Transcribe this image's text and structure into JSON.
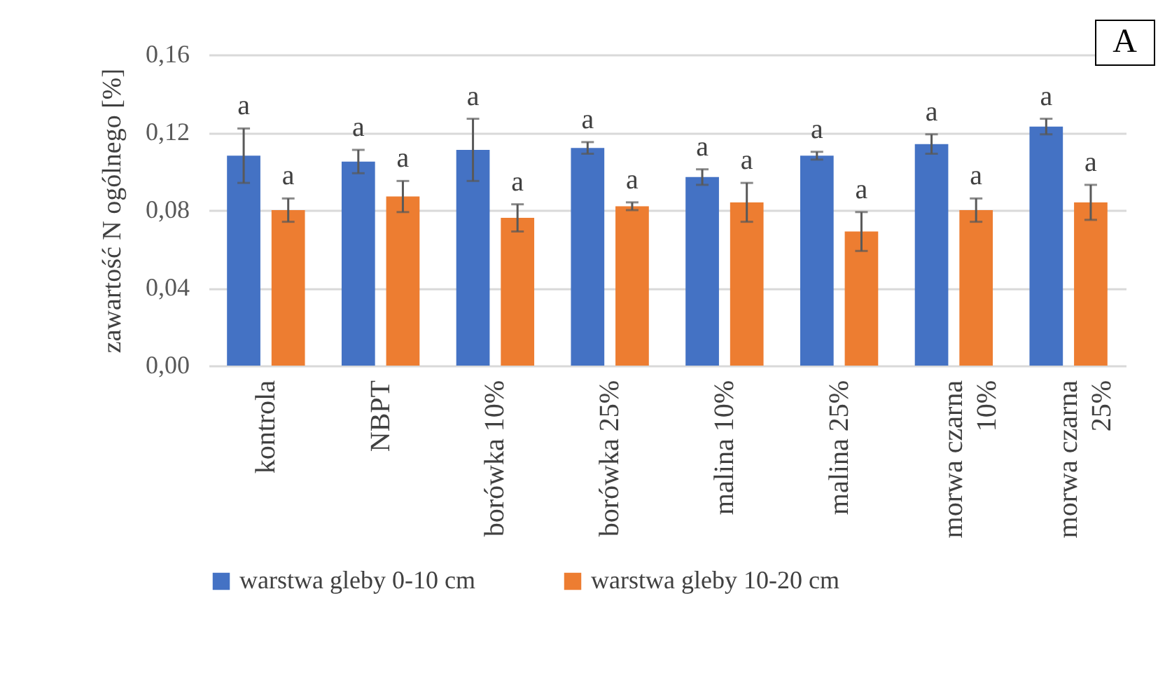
{
  "chart_data": {
    "type": "bar",
    "ylabel": "zawartość N ogólnego [%]",
    "categories": [
      "kontrola",
      "NBPT",
      "borówka 10%",
      "borówka 25%",
      "malina 10%",
      "malina 25%",
      "morwa czarna 10%",
      "morwa czarna 25%"
    ],
    "series": [
      {
        "name": "warstwa gleby 0-10 cm",
        "color": "#4472c4",
        "values": [
          0.108,
          0.105,
          0.111,
          0.112,
          0.097,
          0.108,
          0.114,
          0.123
        ],
        "errors": [
          0.014,
          0.006,
          0.016,
          0.003,
          0.004,
          0.002,
          0.005,
          0.004
        ]
      },
      {
        "name": "warstwa gleby 10-20 cm",
        "color": "#ed7d31",
        "values": [
          0.08,
          0.087,
          0.076,
          0.082,
          0.084,
          0.069,
          0.08,
          0.084
        ],
        "errors": [
          0.006,
          0.008,
          0.007,
          0.002,
          0.01,
          0.01,
          0.006,
          0.009
        ]
      }
    ],
    "ylim": [
      0,
      0.16
    ],
    "yticks": [
      {
        "value": 0,
        "label": "0,00"
      },
      {
        "value": 0.04,
        "label": "0,04"
      },
      {
        "value": 0.08,
        "label": "0,08"
      },
      {
        "value": 0.12,
        "label": "0,12"
      },
      {
        "value": 0.16,
        "label": "0,16"
      }
    ],
    "grid": "y",
    "legend": "bottom",
    "annotations": [
      "a",
      "a",
      "a",
      "a",
      "a",
      "a",
      "a",
      "a",
      "a",
      "a",
      "a",
      "a",
      "a",
      "a",
      "a",
      "a",
      "A"
    ]
  }
}
